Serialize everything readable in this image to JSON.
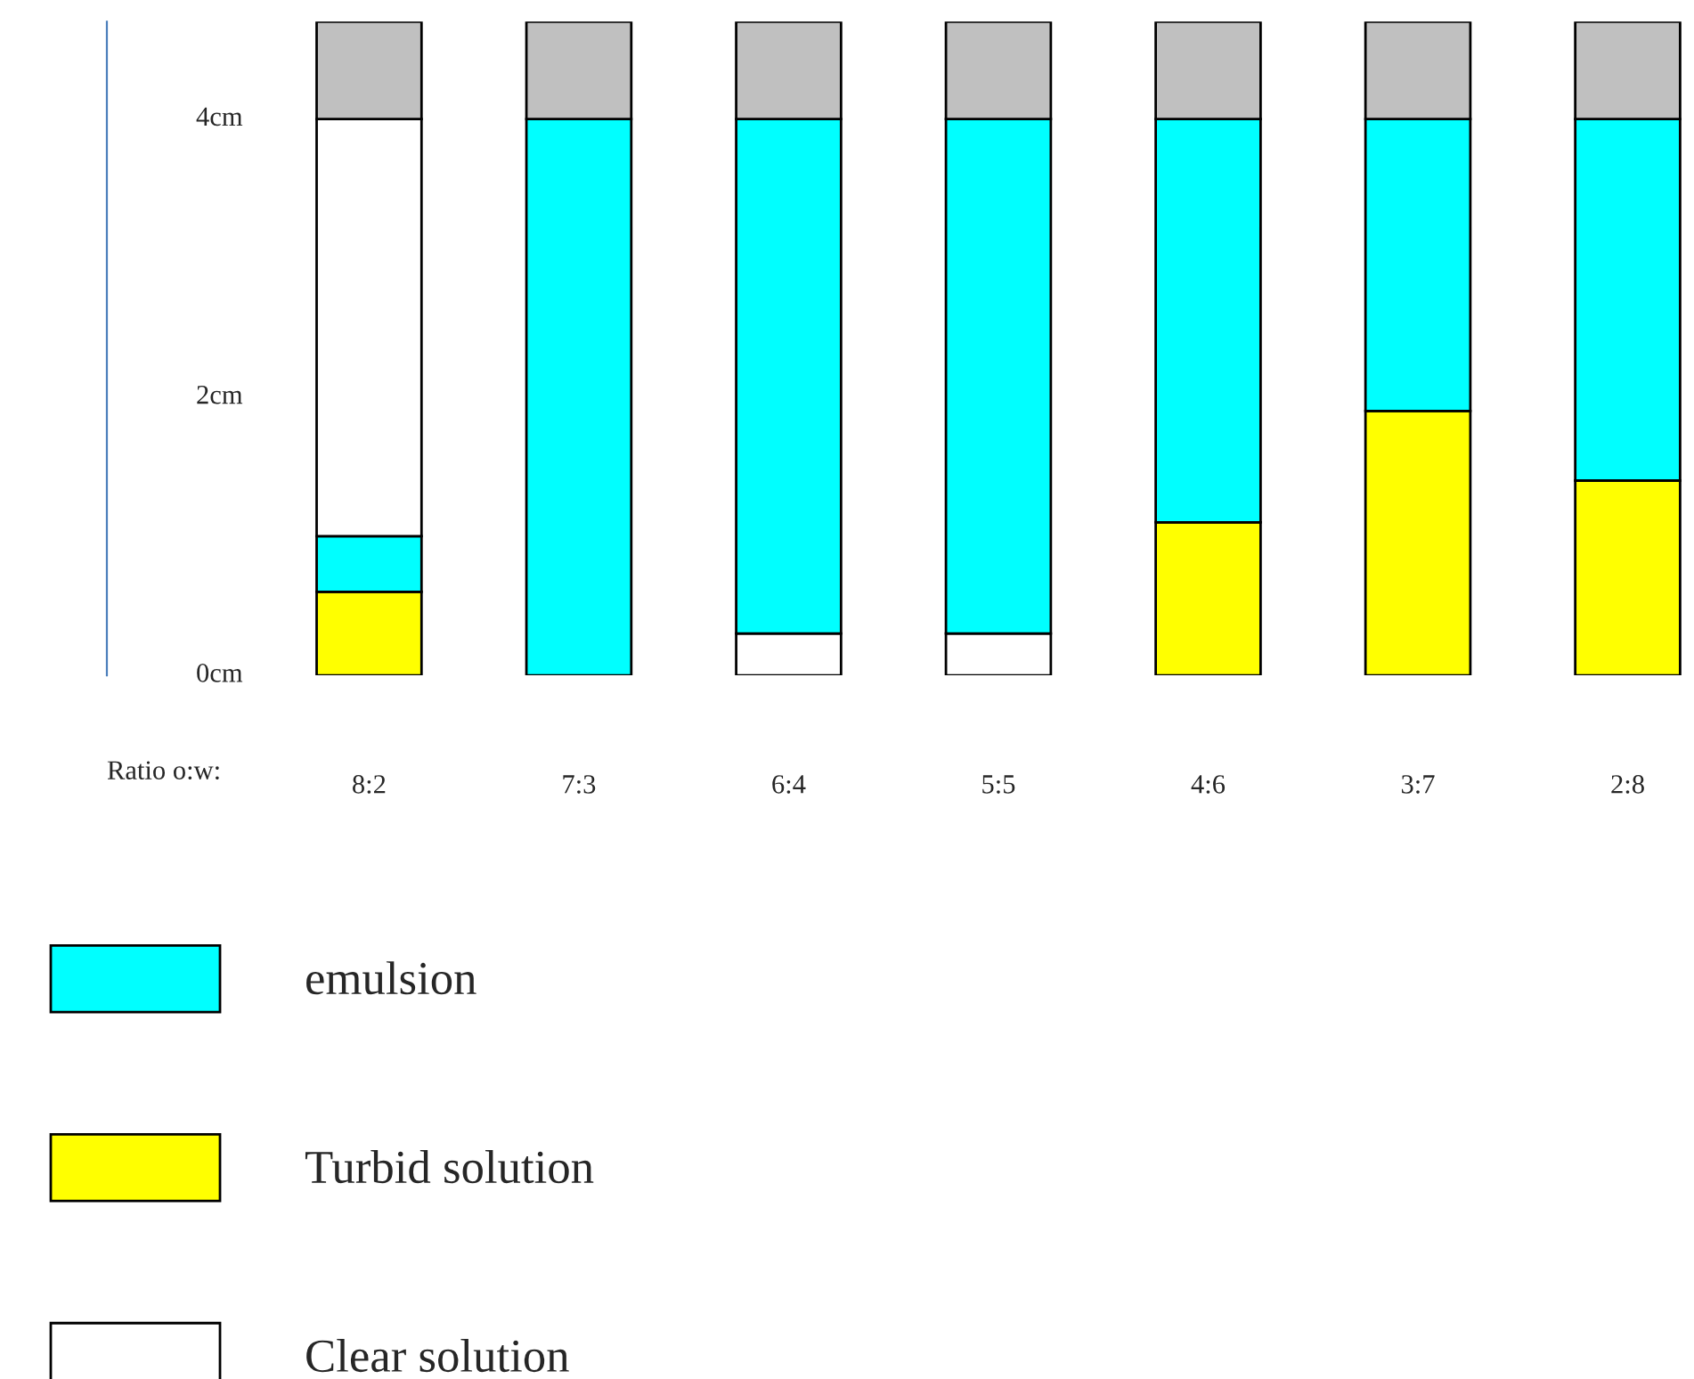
{
  "chart_data": {
    "type": "bar",
    "stacked": true,
    "xlabel": "Ratio o:w:",
    "categories": [
      "8:2",
      "7:3",
      "6:4",
      "5:5",
      "4:6",
      "3:7",
      "2:8"
    ],
    "series": [
      {
        "name": "Clear solution",
        "color": "#ffffff",
        "values": [
          0,
          0,
          0.3,
          0.3,
          0,
          0,
          0
        ]
      },
      {
        "name": "Turbid solution",
        "color": "#ffff00",
        "values": [
          0.6,
          0,
          0,
          0,
          1.1,
          1.9,
          1.4
        ]
      },
      {
        "name": "emulsion",
        "color": "#00ffff",
        "values": [
          0.4,
          4.0,
          3.7,
          3.7,
          2.9,
          2.1,
          2.6
        ]
      },
      {
        "color": "#ffffff",
        "values": [
          3.0,
          0,
          0,
          0,
          0,
          0,
          0
        ]
      },
      {
        "color": "#c0c0c0",
        "values": [
          0.7,
          0.7,
          0.7,
          0.7,
          0.7,
          0.7,
          0.7
        ]
      }
    ],
    "ylim": [
      0,
      4.7
    ],
    "yticks": [
      {
        "value": 0,
        "label": "0cm"
      },
      {
        "value": 2,
        "label": "2cm"
      },
      {
        "value": 4,
        "label": "4cm"
      }
    ],
    "grid": false,
    "legend": "bottom"
  }
}
